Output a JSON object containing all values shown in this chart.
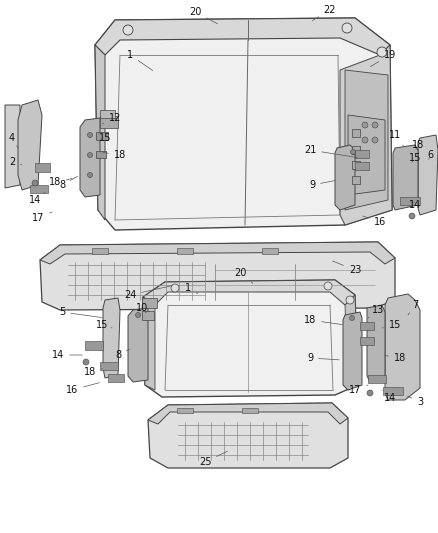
{
  "bg_color": "#ffffff",
  "fig_width": 4.38,
  "fig_height": 5.33,
  "dpi": 100,
  "line_color": "#444444",
  "fill_light": "#e8e8e8",
  "fill_mid": "#cccccc",
  "fill_dark": "#aaaaaa",
  "label_fontsize": 7.0,
  "label_color": "#111111",
  "leader_color": "#555555",
  "leader_lw": 0.5
}
